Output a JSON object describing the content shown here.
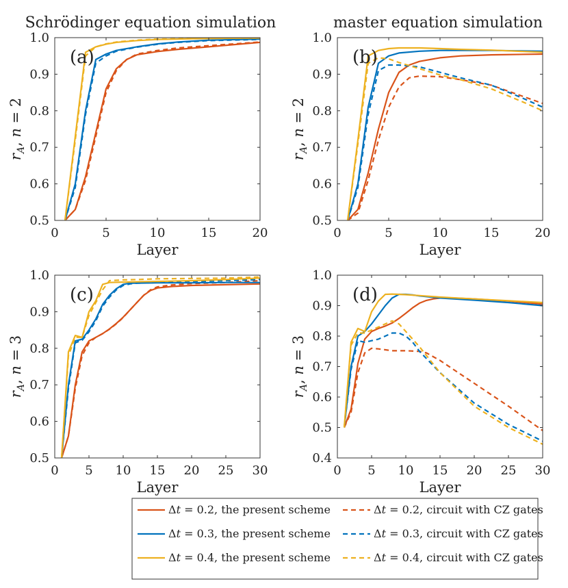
{
  "column_titles": [
    "Schrödinger equation simulation",
    "master equation simulation"
  ],
  "colors": {
    "dt02": "#D95319",
    "dt03": "#0072BD",
    "dt04": "#EDB120"
  },
  "legend": [
    {
      "dt": "0.2",
      "text": ", the present scheme",
      "style": "solid",
      "color": "#D95319"
    },
    {
      "dt": "0.2",
      "text": ", circuit with CZ gates",
      "style": "dashed",
      "color": "#D95319"
    },
    {
      "dt": "0.3",
      "text": ", the present scheme",
      "style": "solid",
      "color": "#0072BD"
    },
    {
      "dt": "0.3",
      "text": ", circuit with CZ gates",
      "style": "dashed",
      "color": "#0072BD"
    },
    {
      "dt": "0.4",
      "text": ", the present scheme",
      "style": "solid",
      "color": "#EDB120"
    },
    {
      "dt": "0.4",
      "text": ", circuit with CZ gates",
      "style": "dashed",
      "color": "#EDB120"
    }
  ],
  "chart_data": [
    {
      "type": "line",
      "label": "(a)",
      "ylabel_n": "2",
      "xlabel": "Layer",
      "xlim": [
        0,
        20
      ],
      "ylim": [
        0.5,
        1.0
      ],
      "xticks": [
        0,
        5,
        10,
        15,
        20
      ],
      "yticks": [
        0.5,
        0.6,
        0.7,
        0.8,
        0.9,
        1.0
      ],
      "series": [
        {
          "key": "dt02",
          "style": "solid",
          "x": [
            1,
            2,
            3,
            4,
            5,
            6,
            7,
            8,
            10,
            12,
            15,
            20
          ],
          "y": [
            0.5,
            0.53,
            0.62,
            0.74,
            0.86,
            0.915,
            0.94,
            0.953,
            0.962,
            0.968,
            0.975,
            0.987
          ]
        },
        {
          "key": "dt02",
          "style": "dashed",
          "x": [
            1,
            2,
            3,
            4,
            5,
            6,
            7,
            8,
            10,
            12,
            15,
            20
          ],
          "y": [
            0.5,
            0.53,
            0.61,
            0.73,
            0.85,
            0.91,
            0.94,
            0.955,
            0.965,
            0.972,
            0.978,
            0.988
          ]
        },
        {
          "key": "dt03",
          "style": "solid",
          "x": [
            1,
            2,
            3,
            4,
            5,
            6,
            8,
            10,
            12,
            15,
            20
          ],
          "y": [
            0.5,
            0.6,
            0.8,
            0.94,
            0.955,
            0.965,
            0.975,
            0.983,
            0.988,
            0.993,
            0.996
          ]
        },
        {
          "key": "dt03",
          "style": "dashed",
          "x": [
            1,
            2,
            3,
            4,
            5,
            6,
            8,
            10,
            12,
            15,
            20
          ],
          "y": [
            0.5,
            0.59,
            0.79,
            0.93,
            0.95,
            0.963,
            0.974,
            0.982,
            0.987,
            0.992,
            0.995
          ]
        },
        {
          "key": "dt04",
          "style": "solid",
          "x": [
            1,
            2,
            3,
            4,
            5,
            6,
            8,
            10,
            15,
            20
          ],
          "y": [
            0.5,
            0.73,
            0.96,
            0.975,
            0.982,
            0.987,
            0.992,
            0.995,
            0.998,
            0.999
          ]
        },
        {
          "key": "dt04",
          "style": "dashed",
          "x": [
            1,
            2,
            3,
            4,
            5,
            6,
            8,
            10,
            15,
            20
          ],
          "y": [
            0.5,
            0.72,
            0.95,
            0.975,
            0.983,
            0.988,
            0.993,
            0.996,
            0.998,
            0.999
          ]
        }
      ]
    },
    {
      "type": "line",
      "label": "(b)",
      "ylabel_n": "2",
      "xlabel": "Layer",
      "xlim": [
        0,
        20
      ],
      "ylim": [
        0.5,
        1.0
      ],
      "xticks": [
        0,
        5,
        10,
        15,
        20
      ],
      "yticks": [
        0.5,
        0.6,
        0.7,
        0.8,
        0.9,
        1.0
      ],
      "series": [
        {
          "key": "dt02",
          "style": "solid",
          "x": [
            1,
            2,
            3,
            4,
            5,
            6,
            7,
            8,
            10,
            12,
            15,
            20
          ],
          "y": [
            0.5,
            0.53,
            0.63,
            0.75,
            0.85,
            0.905,
            0.925,
            0.935,
            0.945,
            0.95,
            0.953,
            0.955
          ]
        },
        {
          "key": "dt02",
          "style": "dashed",
          "x": [
            1,
            2,
            3,
            4,
            5,
            6,
            7,
            8,
            10,
            12,
            15,
            18,
            20
          ],
          "y": [
            0.5,
            0.52,
            0.61,
            0.72,
            0.81,
            0.865,
            0.89,
            0.895,
            0.893,
            0.885,
            0.87,
            0.84,
            0.82
          ]
        },
        {
          "key": "dt03",
          "style": "solid",
          "x": [
            1,
            2,
            3,
            4,
            5,
            6,
            8,
            10,
            12,
            15,
            20
          ],
          "y": [
            0.5,
            0.6,
            0.81,
            0.93,
            0.95,
            0.958,
            0.963,
            0.965,
            0.965,
            0.965,
            0.963
          ]
        },
        {
          "key": "dt03",
          "style": "dashed",
          "x": [
            1,
            2,
            3,
            4,
            5,
            6,
            8,
            10,
            12,
            15,
            18,
            20
          ],
          "y": [
            0.5,
            0.59,
            0.79,
            0.91,
            0.925,
            0.925,
            0.92,
            0.905,
            0.89,
            0.87,
            0.835,
            0.81
          ]
        },
        {
          "key": "dt04",
          "style": "solid",
          "x": [
            1,
            2,
            3,
            4,
            5,
            6,
            8,
            10,
            12,
            15,
            20
          ],
          "y": [
            0.5,
            0.72,
            0.95,
            0.965,
            0.97,
            0.972,
            0.972,
            0.97,
            0.968,
            0.966,
            0.96
          ]
        },
        {
          "key": "dt04",
          "style": "dashed",
          "x": [
            1,
            2,
            3,
            4,
            5,
            6,
            8,
            10,
            12,
            15,
            18,
            20
          ],
          "y": [
            0.5,
            0.71,
            0.93,
            0.945,
            0.942,
            0.932,
            0.915,
            0.898,
            0.885,
            0.86,
            0.825,
            0.8
          ]
        }
      ]
    },
    {
      "type": "line",
      "label": "(c)",
      "ylabel_n": "3",
      "xlabel": "Layer",
      "xlim": [
        0,
        30
      ],
      "ylim": [
        0.5,
        1.0
      ],
      "xticks": [
        0,
        5,
        10,
        15,
        20,
        25,
        30
      ],
      "yticks": [
        0.5,
        0.6,
        0.7,
        0.8,
        0.9,
        1.0
      ],
      "series": [
        {
          "key": "dt02",
          "style": "solid",
          "x": [
            1,
            2,
            3,
            4,
            5,
            6,
            7,
            8,
            9,
            10,
            11,
            12,
            13,
            14,
            15,
            17,
            20,
            25,
            30
          ],
          "y": [
            0.5,
            0.56,
            0.7,
            0.79,
            0.82,
            0.83,
            0.84,
            0.853,
            0.868,
            0.885,
            0.905,
            0.925,
            0.945,
            0.958,
            0.965,
            0.969,
            0.972,
            0.974,
            0.976
          ]
        },
        {
          "key": "dt02",
          "style": "dashed",
          "x": [
            1,
            2,
            3,
            4,
            5,
            6,
            7,
            8,
            9,
            10,
            11,
            12,
            13,
            14,
            15,
            17,
            20,
            25,
            30
          ],
          "y": [
            0.5,
            0.56,
            0.69,
            0.78,
            0.815,
            0.83,
            0.84,
            0.852,
            0.867,
            0.884,
            0.905,
            0.925,
            0.945,
            0.96,
            0.968,
            0.973,
            0.977,
            0.98,
            0.985
          ]
        },
        {
          "key": "dt03",
          "style": "solid",
          "x": [
            1,
            2,
            3,
            4,
            5,
            6,
            7,
            8,
            9,
            10,
            11,
            12,
            15,
            20,
            25,
            30
          ],
          "y": [
            0.5,
            0.7,
            0.82,
            0.825,
            0.85,
            0.88,
            0.92,
            0.945,
            0.963,
            0.975,
            0.978,
            0.978,
            0.979,
            0.979,
            0.98,
            0.98
          ]
        },
        {
          "key": "dt03",
          "style": "dashed",
          "x": [
            1,
            2,
            3,
            4,
            5,
            6,
            7,
            8,
            9,
            10,
            11,
            12,
            15,
            20,
            25,
            30
          ],
          "y": [
            0.5,
            0.69,
            0.815,
            0.822,
            0.845,
            0.875,
            0.915,
            0.94,
            0.96,
            0.972,
            0.976,
            0.978,
            0.98,
            0.982,
            0.985,
            0.988
          ]
        },
        {
          "key": "dt04",
          "style": "solid",
          "x": [
            1,
            2,
            3,
            4,
            5,
            6,
            7,
            8,
            10,
            12,
            15,
            20,
            25,
            30
          ],
          "y": [
            0.5,
            0.79,
            0.835,
            0.83,
            0.9,
            0.93,
            0.975,
            0.98,
            0.981,
            0.982,
            0.983,
            0.985,
            0.988,
            0.992
          ]
        },
        {
          "key": "dt04",
          "style": "dashed",
          "x": [
            1,
            2,
            3,
            4,
            5,
            6,
            7,
            8,
            10,
            12,
            15,
            20,
            25,
            30
          ],
          "y": [
            0.5,
            0.78,
            0.83,
            0.83,
            0.89,
            0.925,
            0.96,
            0.985,
            0.987,
            0.988,
            0.99,
            0.991,
            0.992,
            0.995
          ]
        }
      ]
    },
    {
      "type": "line",
      "label": "(d)",
      "ylabel_n": "3",
      "xlabel": "Layer",
      "xlim": [
        0,
        30
      ],
      "ylim": [
        0.4,
        1.0
      ],
      "xticks": [
        0,
        5,
        10,
        15,
        20,
        25,
        30
      ],
      "yticks": [
        0.4,
        0.5,
        0.6,
        0.7,
        0.8,
        0.9,
        1.0
      ],
      "series": [
        {
          "key": "dt02",
          "style": "solid",
          "x": [
            1,
            2,
            3,
            4,
            5,
            6,
            7,
            8,
            9,
            10,
            11,
            12,
            13,
            14,
            15,
            17,
            20,
            25,
            30
          ],
          "y": [
            0.5,
            0.56,
            0.71,
            0.79,
            0.815,
            0.825,
            0.833,
            0.843,
            0.858,
            0.875,
            0.893,
            0.908,
            0.917,
            0.922,
            0.925,
            0.925,
            0.922,
            0.915,
            0.905
          ]
        },
        {
          "key": "dt02",
          "style": "dashed",
          "x": [
            1,
            2,
            3,
            4,
            5,
            6,
            7,
            8,
            10,
            12,
            13,
            15,
            17,
            20,
            25,
            30
          ],
          "y": [
            0.5,
            0.55,
            0.68,
            0.745,
            0.76,
            0.758,
            0.755,
            0.752,
            0.752,
            0.75,
            0.745,
            0.72,
            0.69,
            0.645,
            0.57,
            0.49
          ]
        },
        {
          "key": "dt03",
          "style": "solid",
          "x": [
            1,
            2,
            3,
            4,
            5,
            6,
            7,
            8,
            9,
            10,
            11,
            12,
            15,
            20,
            25,
            30
          ],
          "y": [
            0.5,
            0.7,
            0.8,
            0.815,
            0.84,
            0.87,
            0.9,
            0.925,
            0.937,
            0.937,
            0.935,
            0.932,
            0.925,
            0.918,
            0.91,
            0.9
          ]
        },
        {
          "key": "dt03",
          "style": "dashed",
          "x": [
            1,
            2,
            3,
            4,
            5,
            6,
            7,
            8,
            9,
            10,
            11,
            12,
            15,
            20,
            25,
            30
          ],
          "y": [
            0.5,
            0.69,
            0.785,
            0.78,
            0.785,
            0.79,
            0.8,
            0.81,
            0.81,
            0.8,
            0.78,
            0.75,
            0.68,
            0.58,
            0.51,
            0.455
          ]
        },
        {
          "key": "dt04",
          "style": "solid",
          "x": [
            1,
            2,
            3,
            4,
            5,
            6,
            7,
            8,
            9,
            10,
            12,
            15,
            20,
            25,
            30
          ],
          "y": [
            0.5,
            0.78,
            0.825,
            0.815,
            0.88,
            0.915,
            0.937,
            0.938,
            0.937,
            0.936,
            0.933,
            0.928,
            0.922,
            0.916,
            0.91
          ]
        },
        {
          "key": "dt04",
          "style": "dashed",
          "x": [
            1,
            2,
            3,
            4,
            5,
            6,
            7,
            8,
            9,
            10,
            12,
            15,
            20,
            25,
            30
          ],
          "y": [
            0.5,
            0.77,
            0.81,
            0.81,
            0.82,
            0.83,
            0.84,
            0.85,
            0.84,
            0.815,
            0.765,
            0.68,
            0.57,
            0.5,
            0.445
          ]
        }
      ]
    }
  ]
}
